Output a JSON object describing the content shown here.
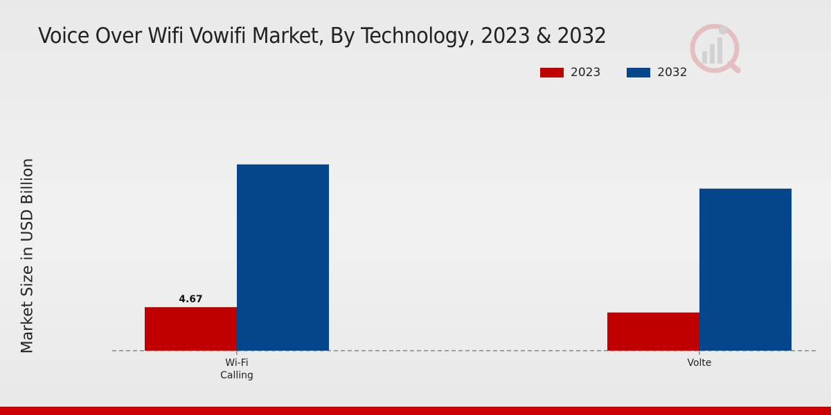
{
  "chart_data": {
    "type": "bar",
    "title": "Voice Over Wifi Vowifi Market, By Technology, 2023 & 2032",
    "xlabel": "",
    "ylabel": "Market Size in USD Billion",
    "categories": [
      "Wi-Fi Calling",
      "Volte"
    ],
    "category_lines": [
      [
        "Wi-Fi",
        "Calling"
      ],
      [
        "Volte"
      ]
    ],
    "series": [
      {
        "name": "2023",
        "color": "#c00000",
        "values": [
          4.67,
          4.1
        ]
      },
      {
        "name": "2032",
        "color": "#03468b",
        "values": [
          20.0,
          17.4
        ]
      }
    ],
    "data_labels": [
      {
        "series": 0,
        "index": 0,
        "text": "4.67"
      }
    ],
    "ylim": [
      0,
      28
    ],
    "grid": false,
    "legend_position": "top-right",
    "baseline": "dashed"
  },
  "footer": {
    "accent_color": "#cc0000"
  }
}
